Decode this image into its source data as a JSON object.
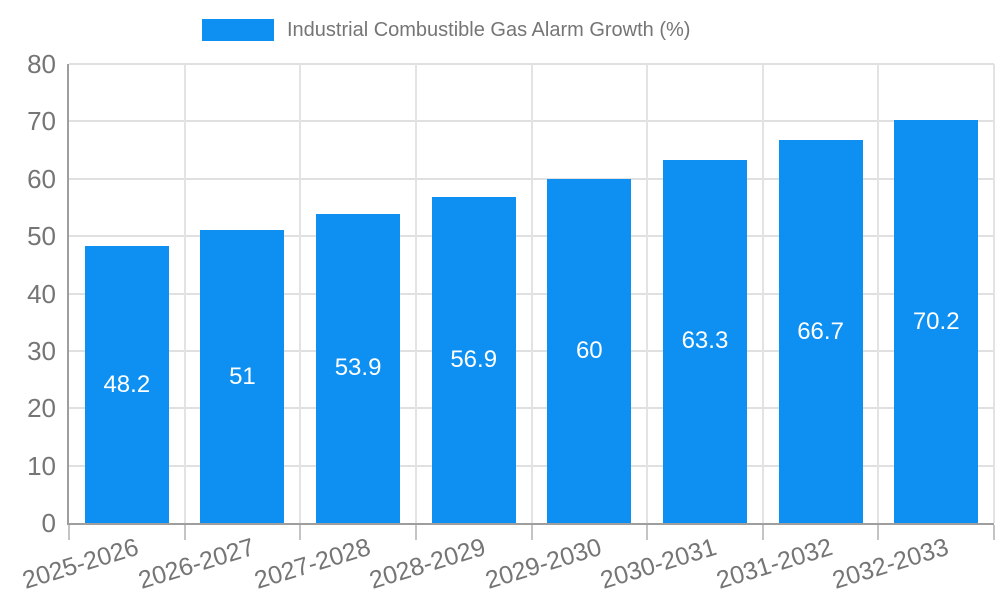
{
  "legend": {
    "label": "Industrial Combustible Gas Alarm Growth (%)",
    "swatch_color": "#0d90f2"
  },
  "chart_data": {
    "type": "bar",
    "title": "",
    "series_name": "Industrial Combustible Gas Alarm Growth (%)",
    "categories": [
      "2025-2026",
      "2026-2027",
      "2027-2028",
      "2028-2029",
      "2029-2030",
      "2030-2031",
      "2031-2032",
      "2032-2033"
    ],
    "values": [
      48.2,
      51,
      53.9,
      56.9,
      60,
      63.3,
      66.7,
      70.2
    ],
    "value_labels": [
      "48.2",
      "51",
      "53.9",
      "56.9",
      "60",
      "63.3",
      "66.7",
      "70.2"
    ],
    "ylim": [
      0,
      80
    ],
    "yticks": [
      0,
      10,
      20,
      30,
      40,
      50,
      60,
      70,
      80
    ],
    "grid": true,
    "legend_position": "top-center",
    "xlabel": "",
    "ylabel": "",
    "x_label_angle_deg": -17,
    "bar_label_position": "inside-middle",
    "colors": {
      "bar": "#0d90f2",
      "bar_label": "#ffffff",
      "axis_text": "#757575",
      "gridline": "#e0e0e0",
      "axis_line": "#9e9e9e"
    }
  }
}
